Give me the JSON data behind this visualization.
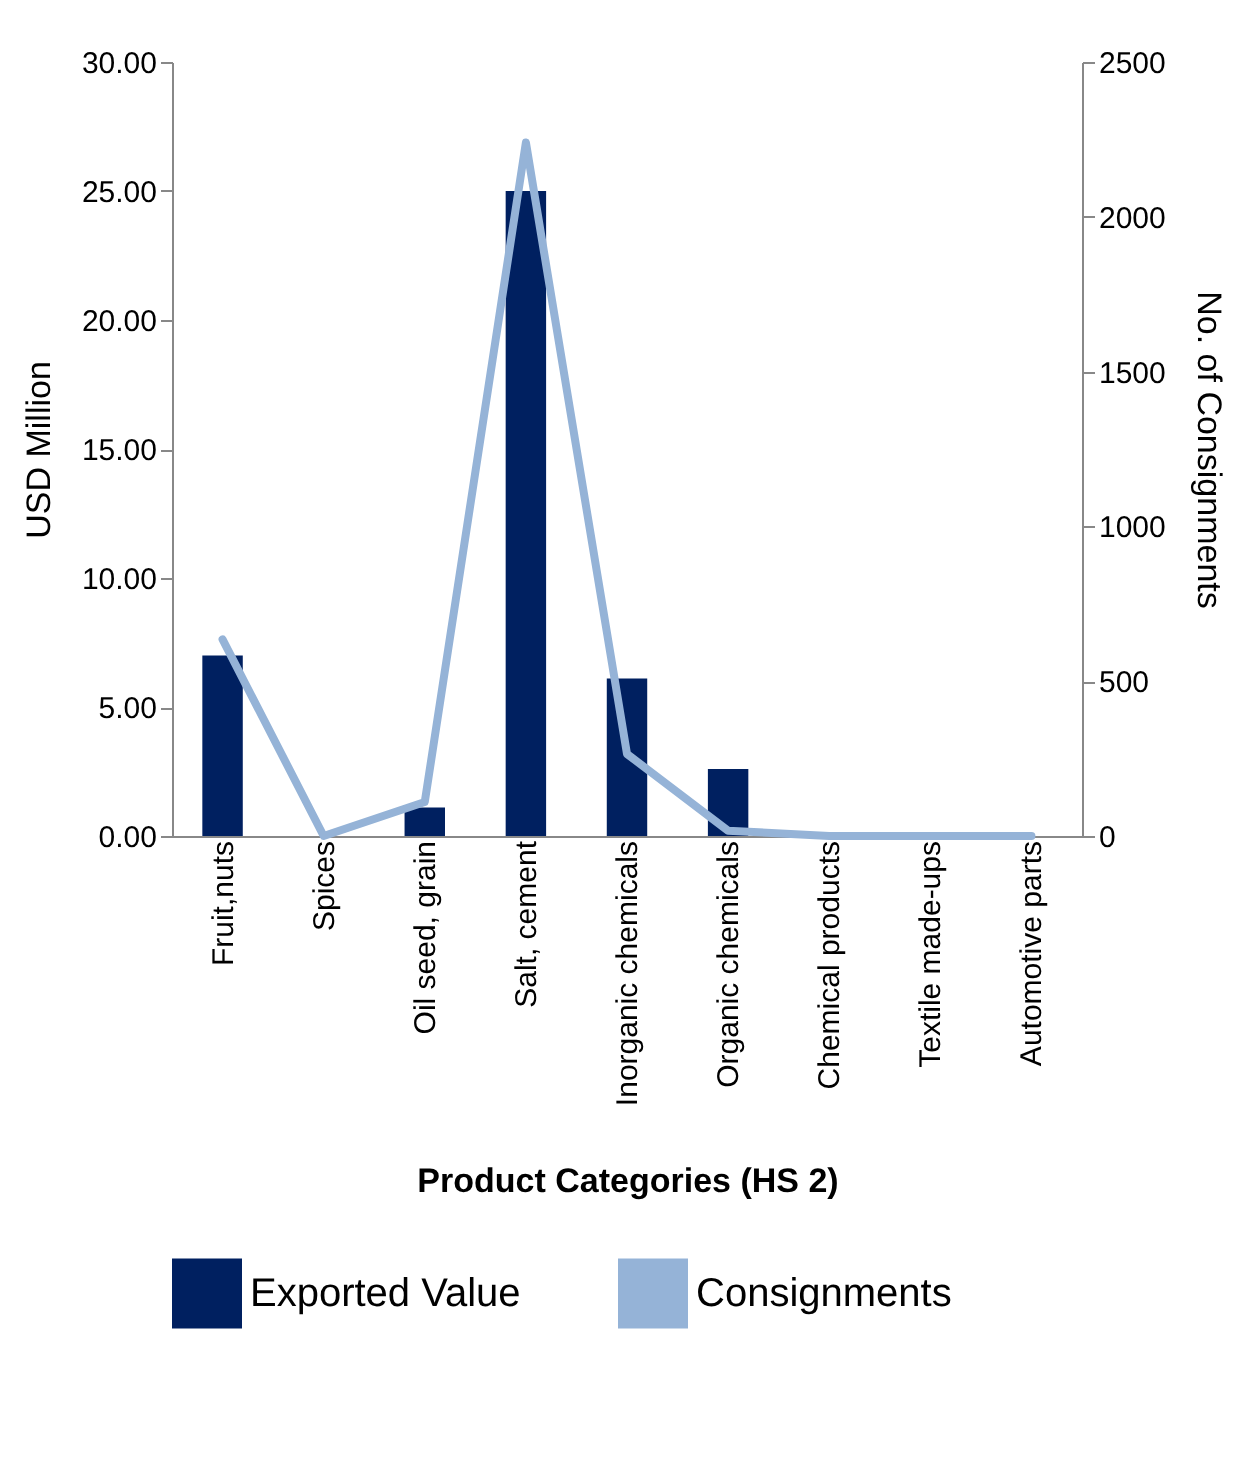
{
  "chart_data": {
    "type": "bar",
    "xlabel": "Product Categories (HS 2)",
    "ylabel": "USD Million",
    "y2label": "No. of Consignments",
    "categories": [
      "Fruit,nuts",
      "Spices",
      "Oil seed, grain",
      "Salt, cement",
      "Inorganic chemicals",
      "Organic chemicals",
      "Chemical products",
      "Textile made-ups",
      "Automotive parts"
    ],
    "series": [
      {
        "name": "Exported Value",
        "color": "#002060",
        "values": [
          7.0,
          0,
          1.1,
          25.0,
          6.1,
          2.6,
          0,
          0,
          0
        ]
      },
      {
        "name": "Consignments",
        "type": "line",
        "axis": "y2",
        "color": "#95b3d7",
        "values": [
          635,
          0,
          110,
          2240,
          265,
          17,
          0,
          0,
          0
        ]
      }
    ],
    "ylim": [
      0,
      30
    ],
    "yticks": [
      {
        "value": 0,
        "label": "0.00"
      },
      {
        "value": 5,
        "label": "5.00"
      },
      {
        "value": 10,
        "label": "10.00"
      },
      {
        "value": 15,
        "label": "15.00"
      },
      {
        "value": 20,
        "label": "20.00"
      },
      {
        "value": 25,
        "label": "25.00"
      },
      {
        "value": 30,
        "label": "30.00"
      }
    ],
    "y2lim": [
      0,
      2500
    ],
    "y2ticks": [
      0,
      500,
      1000,
      1500,
      2000,
      2500
    ],
    "grid": false,
    "legend": "bottom"
  }
}
